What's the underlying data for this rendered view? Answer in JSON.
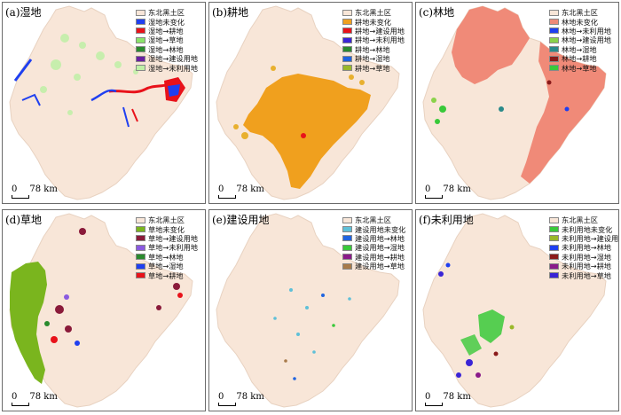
{
  "colors": {
    "region": "#f8e6d8",
    "outline": "#e8d2c1"
  },
  "scale": {
    "zero": "0",
    "distance": "78 km"
  },
  "panels": [
    {
      "title": "(a)湿地",
      "legend": [
        {
          "label": "东北黑土区",
          "color": "#f8e6d8"
        },
        {
          "label": "湿地未变化",
          "color": "#1f3ff0"
        },
        {
          "label": "湿地→耕地",
          "color": "#e8121a"
        },
        {
          "label": "湿地→草地",
          "color": "#8be36b"
        },
        {
          "label": "湿地→林地",
          "color": "#2a8a2e"
        },
        {
          "label": "湿地→建设用地",
          "color": "#6a1fa0"
        },
        {
          "label": "湿地→未利用地",
          "color": "#bff0a6"
        }
      ]
    },
    {
      "title": "(b)耕地",
      "legend": [
        {
          "label": "东北黑土区",
          "color": "#f8e6d8"
        },
        {
          "label": "耕地未变化",
          "color": "#f0a01e"
        },
        {
          "label": "耕地→建设用地",
          "color": "#e8121a"
        },
        {
          "label": "耕地→未利用地",
          "color": "#3a24d6"
        },
        {
          "label": "耕地→林地",
          "color": "#2a8a2e"
        },
        {
          "label": "耕地→湿地",
          "color": "#1f64e0"
        },
        {
          "label": "耕地→草地",
          "color": "#9ab82a"
        }
      ]
    },
    {
      "title": "(c)林地",
      "legend": [
        {
          "label": "东北黑土区",
          "color": "#f8e6d8"
        },
        {
          "label": "林地未变化",
          "color": "#f08a78"
        },
        {
          "label": "林地→未利用地",
          "color": "#1f3ff0"
        },
        {
          "label": "林地→建设用地",
          "color": "#8ad24a"
        },
        {
          "label": "林地→湿地",
          "color": "#2a8a8a"
        },
        {
          "label": "林地→耕地",
          "color": "#8a1a1a"
        },
        {
          "label": "林地→草地",
          "color": "#39c93a"
        }
      ]
    },
    {
      "title": "(d)草地",
      "legend": [
        {
          "label": "东北黑土区",
          "color": "#f8e6d8"
        },
        {
          "label": "草地未变化",
          "color": "#7ab51e"
        },
        {
          "label": "草地→建设用地",
          "color": "#8a1a3a"
        },
        {
          "label": "草地→未利用地",
          "color": "#8a5ae0"
        },
        {
          "label": "草地→林地",
          "color": "#2a8a2e"
        },
        {
          "label": "草地→湿地",
          "color": "#1f3ff0"
        },
        {
          "label": "草地→耕地",
          "color": "#e8121a"
        }
      ]
    },
    {
      "title": "(e)建设用地",
      "legend": [
        {
          "label": "东北黑土区",
          "color": "#f8e6d8"
        },
        {
          "label": "建设用地未变化",
          "color": "#5fc0d8"
        },
        {
          "label": "建设用地→林地",
          "color": "#1f64e0"
        },
        {
          "label": "建设用地→湿地",
          "color": "#39c93a"
        },
        {
          "label": "建设用地→耕地",
          "color": "#8a1a8a"
        },
        {
          "label": "建设用地→草地",
          "color": "#a87a4a"
        }
      ]
    },
    {
      "title": "(f)未利用地",
      "legend": [
        {
          "label": "东北黑土区",
          "color": "#f8e6d8"
        },
        {
          "label": "未利用地未变化",
          "color": "#39c93a"
        },
        {
          "label": "未利用地→建设用地",
          "color": "#9ab82a"
        },
        {
          "label": "未利用地→林地",
          "color": "#1f3ff0"
        },
        {
          "label": "未利用地→湿地",
          "color": "#8a1a1a"
        },
        {
          "label": "未利用地→耕地",
          "color": "#8a1a8a"
        },
        {
          "label": "未利用地→草地",
          "color": "#3a24d6"
        }
      ]
    }
  ]
}
